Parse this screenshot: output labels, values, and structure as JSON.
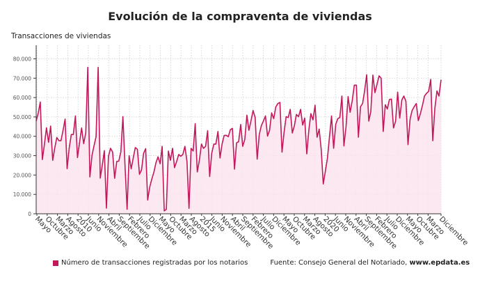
{
  "chart_data": {
    "type": "area",
    "title": "Evolución de la compraventa de viviendas",
    "ylabel": "Transacciones de viviendas",
    "xlabel": "",
    "ylim": [
      0,
      87000
    ],
    "y_ticks": [
      0,
      10000,
      20000,
      30000,
      40000,
      50000,
      60000,
      70000,
      80000
    ],
    "y_tick_labels": [
      "0",
      "10.000",
      "20.000",
      "30.000",
      "40.000",
      "50.000",
      "60.000",
      "70.000",
      "80.000"
    ],
    "x_tick_labels": [
      "Mayo",
      "Octubre",
      "Marzo",
      "Agosto",
      "2010",
      "Junio",
      "Noviembre",
      "Abril",
      "Septiembre",
      "Febrero",
      "Julio",
      "Diciembre",
      "Mayo",
      "Octubre",
      "Marzo",
      "Agosto",
      "2015",
      "Junio",
      "Noviembre",
      "Abril",
      "Septiembre",
      "Febrero",
      "Julio",
      "Diciembre",
      "Mayo",
      "Octubre",
      "Marzo",
      "Agosto",
      "2020",
      "Junio",
      "Noviembre",
      "Abril",
      "Septiembre",
      "Febrero",
      "Julio",
      "Diciembre",
      "Mayo",
      "Octubre",
      "Marzo",
      "Diciembre"
    ],
    "grid": true,
    "legend_position": "bottom",
    "series": [
      {
        "name": "Número de transacciones registradas por los notarios",
        "color": "#c2185b",
        "fill": "#fbe4ee",
        "values": [
          47900,
          52000,
          57700,
          28000,
          36000,
          44400,
          36900,
          45300,
          27600,
          34000,
          39400,
          37700,
          37700,
          43000,
          48900,
          23300,
          34000,
          40900,
          40900,
          50500,
          29000,
          37000,
          44300,
          36200,
          41900,
          75600,
          19000,
          30100,
          35000,
          39800,
          75600,
          18400,
          25000,
          32600,
          2900,
          29700,
          33800,
          31900,
          18300,
          27000,
          27200,
          31900,
          50100,
          25000,
          2300,
          30000,
          23200,
          29000,
          34200,
          33300,
          20400,
          22600,
          31200,
          33600,
          7100,
          13900,
          18000,
          21600,
          26400,
          29400,
          25800,
          34800,
          1500,
          2300,
          32400,
          27600,
          33800,
          23800,
          27000,
          30600,
          29700,
          30600,
          34800,
          27000,
          2800,
          33800,
          32400,
          46500,
          21600,
          27600,
          36000,
          33800,
          34800,
          42900,
          19200,
          31400,
          36000,
          36000,
          42500,
          28800,
          36000,
          40400,
          40500,
          39800,
          43400,
          44100,
          23000,
          36600,
          37200,
          46100,
          34800,
          38400,
          50900,
          43100,
          48000,
          53300,
          49700,
          28200,
          41000,
          45500,
          47900,
          50500,
          40100,
          43100,
          52100,
          49100,
          55100,
          56900,
          57500,
          31800,
          41900,
          50100,
          49700,
          53900,
          41700,
          45500,
          51300,
          50100,
          53900,
          45800,
          49400,
          30900,
          43400,
          51700,
          48500,
          56000,
          39500,
          43700,
          33000,
          15400,
          22000,
          28800,
          40000,
          50500,
          33800,
          46100,
          49100,
          49700,
          60800,
          35000,
          44900,
          60500,
          52400,
          58400,
          66400,
          66400,
          39500,
          55300,
          56900,
          63400,
          71800,
          47900,
          52700,
          71600,
          62500,
          66800,
          71200,
          70000,
          42500,
          56300,
          54100,
          59000,
          59200,
          44300,
          47900,
          62800,
          49400,
          58700,
          60800,
          58100,
          35700,
          48900,
          53300,
          55300,
          56900,
          48100,
          51700,
          56000,
          60800,
          62200,
          63200,
          69400,
          37700,
          54500,
          63400,
          60800,
          69200
        ]
      }
    ]
  },
  "source": {
    "prefix": "Fuente: Consejo General del Notariado, ",
    "site": "www.epdata.es"
  }
}
